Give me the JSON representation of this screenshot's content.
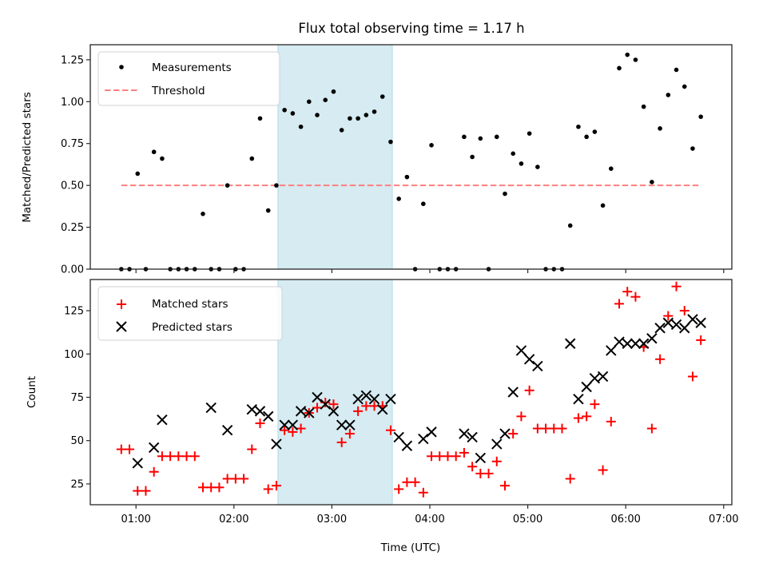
{
  "chart_data": [
    {
      "type": "scatter",
      "panel": "top",
      "title": "Flux total observing time = 1.17 h",
      "xlabel": "",
      "ylabel": "Matched/Predicted stars",
      "ylim": [
        0,
        1.34
      ],
      "yticks": [
        0.0,
        0.25,
        0.5,
        0.75,
        1.0,
        1.25
      ],
      "ytick_labels": [
        "0.00",
        "0.25",
        "0.50",
        "0.75",
        "1.00",
        "1.25"
      ],
      "legend_position": "top-left",
      "highlight_span": {
        "start": "02:27",
        "end": "03:37",
        "color": "#add8e6"
      },
      "series": [
        {
          "name": "Measurements",
          "style": "dot",
          "color": "#000000",
          "x": [
            "00:51",
            "00:56",
            "01:01",
            "01:06",
            "01:11",
            "01:16",
            "01:21",
            "01:26",
            "01:31",
            "01:36",
            "01:41",
            "01:46",
            "01:51",
            "01:56",
            "02:01",
            "02:06",
            "02:11",
            "02:16",
            "02:21",
            "02:26",
            "02:31",
            "02:36",
            "02:41",
            "02:46",
            "02:51",
            "02:56",
            "03:01",
            "03:06",
            "03:11",
            "03:16",
            "03:21",
            "03:26",
            "03:31",
            "03:36",
            "03:41",
            "03:46",
            "03:51",
            "03:56",
            "04:01",
            "04:06",
            "04:11",
            "04:16",
            "04:21",
            "04:26",
            "04:31",
            "04:36",
            "04:41",
            "04:46",
            "04:51",
            "04:56",
            "05:01",
            "05:06",
            "05:11",
            "05:16",
            "05:21",
            "05:26",
            "05:31",
            "05:36",
            "05:41",
            "05:46",
            "05:51",
            "05:56",
            "06:01",
            "06:06",
            "06:11",
            "06:16",
            "06:21",
            "06:26",
            "06:31",
            "06:36",
            "06:41",
            "06:46"
          ],
          "values": [
            0.0,
            0.0,
            0.57,
            0.0,
            0.7,
            0.66,
            0.0,
            0.0,
            0.0,
            0.0,
            0.33,
            0.0,
            0.0,
            0.5,
            0.0,
            0.0,
            0.66,
            0.9,
            0.35,
            0.5,
            0.95,
            0.93,
            0.85,
            1.0,
            0.92,
            1.01,
            1.06,
            0.83,
            0.9,
            0.9,
            0.92,
            0.94,
            1.03,
            0.76,
            0.42,
            0.55,
            0.0,
            0.39,
            0.74,
            0.0,
            0.0,
            0.0,
            0.79,
            0.67,
            0.78,
            0.0,
            0.79,
            0.45,
            0.69,
            0.63,
            0.81,
            0.61,
            0.0,
            0.0,
            0.0,
            0.26,
            0.85,
            0.79,
            0.82,
            0.38,
            0.6,
            1.2,
            1.28,
            1.25,
            0.97,
            0.52,
            0.84,
            1.04,
            1.19,
            1.09,
            0.72,
            0.91
          ]
        },
        {
          "name": "Threshold",
          "style": "dashed-line",
          "color": "#ff7f7f",
          "x": [
            "00:51",
            "06:46"
          ],
          "values": [
            0.5,
            0.5
          ]
        }
      ]
    },
    {
      "type": "scatter",
      "panel": "bottom",
      "title": "",
      "xlabel": "Time (UTC)",
      "ylabel": "Count",
      "ylim": [
        13,
        143
      ],
      "yticks": [
        25,
        50,
        75,
        100,
        125
      ],
      "ytick_labels": [
        "25",
        "50",
        "75",
        "100",
        "125"
      ],
      "xticks": [
        "01:00",
        "02:00",
        "03:00",
        "04:00",
        "05:00",
        "06:00",
        "07:00"
      ],
      "xlim": [
        "00:32",
        "07:05"
      ],
      "legend_position": "top-left",
      "highlight_span": {
        "start": "02:27",
        "end": "03:37",
        "color": "#add8e6"
      },
      "series": [
        {
          "name": "Matched stars",
          "style": "plus",
          "color": "#ff0000",
          "x": [
            "00:51",
            "00:56",
            "01:01",
            "01:06",
            "01:11",
            "01:16",
            "01:21",
            "01:26",
            "01:31",
            "01:36",
            "01:41",
            "01:46",
            "01:51",
            "01:56",
            "02:01",
            "02:06",
            "02:11",
            "02:16",
            "02:21",
            "02:26",
            "02:31",
            "02:36",
            "02:41",
            "02:46",
            "02:51",
            "02:56",
            "03:01",
            "03:06",
            "03:11",
            "03:16",
            "03:21",
            "03:26",
            "03:31",
            "03:36",
            "03:41",
            "03:46",
            "03:51",
            "03:56",
            "04:01",
            "04:06",
            "04:11",
            "04:16",
            "04:21",
            "04:26",
            "04:31",
            "04:36",
            "04:41",
            "04:46",
            "04:51",
            "04:56",
            "05:01",
            "05:06",
            "05:11",
            "05:16",
            "05:21",
            "05:26",
            "05:31",
            "05:36",
            "05:41",
            "05:46",
            "05:51",
            "05:56",
            "06:01",
            "06:06",
            "06:11",
            "06:16",
            "06:21",
            "06:26",
            "06:31",
            "06:36",
            "06:41",
            "06:46"
          ],
          "values": [
            45,
            45,
            21,
            21,
            32,
            41,
            41,
            41,
            41,
            41,
            23,
            23,
            23,
            28,
            28,
            28,
            45,
            60,
            22,
            24,
            56,
            55,
            57,
            66,
            69,
            72,
            71,
            49,
            54,
            67,
            70,
            70,
            70,
            56,
            22,
            26,
            26,
            20,
            41,
            41,
            41,
            41,
            43,
            35,
            31,
            31,
            38,
            24,
            54,
            64,
            79,
            57,
            57,
            57,
            57,
            28,
            63,
            64,
            71,
            33,
            61,
            129,
            136,
            133,
            104,
            57,
            97,
            122,
            139,
            125,
            87,
            108
          ]
        },
        {
          "name": "Predicted stars",
          "style": "x",
          "color": "#000000",
          "x": [
            "01:01",
            "01:11",
            "01:16",
            "01:46",
            "01:56",
            "02:11",
            "02:16",
            "02:21",
            "02:26",
            "02:31",
            "02:36",
            "02:41",
            "02:46",
            "02:51",
            "02:56",
            "03:01",
            "03:06",
            "03:11",
            "03:16",
            "03:21",
            "03:26",
            "03:31",
            "03:36",
            "03:41",
            "03:46",
            "03:56",
            "04:01",
            "04:21",
            "04:26",
            "04:31",
            "04:41",
            "04:46",
            "04:51",
            "04:56",
            "05:01",
            "05:06",
            "05:26",
            "05:31",
            "05:36",
            "05:41",
            "05:46",
            "05:51",
            "05:56",
            "06:01",
            "06:06",
            "06:11",
            "06:16",
            "06:21",
            "06:26",
            "06:31",
            "06:36",
            "06:41",
            "06:46"
          ],
          "values": [
            37,
            46,
            62,
            69,
            56,
            68,
            67,
            64,
            48,
            59,
            59,
            67,
            66,
            75,
            71,
            67,
            59,
            59,
            74,
            76,
            74,
            68,
            74,
            52,
            47,
            51,
            55,
            54,
            52,
            40,
            48,
            54,
            78,
            102,
            97,
            93,
            106,
            74,
            81,
            86,
            87,
            102,
            107,
            106,
            106,
            106,
            109,
            115,
            118,
            117,
            115,
            120,
            118
          ]
        }
      ]
    }
  ]
}
